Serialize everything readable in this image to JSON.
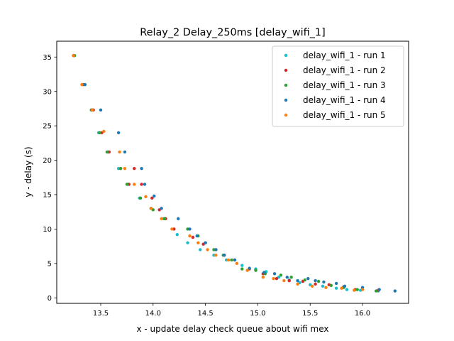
{
  "chart_data": {
    "type": "scatter",
    "title": "Relay_2 Delay_250ms [delay_wifi_1]",
    "xlabel": "x - update delay check queue about wifi mex",
    "ylabel": "y - delay (s)",
    "xlim": [
      13.08,
      16.44
    ],
    "ylim": [
      -0.8,
      37.3
    ],
    "xticks": [
      13.5,
      14.0,
      14.5,
      15.0,
      15.5,
      16.0
    ],
    "xtick_labels": [
      "13.5",
      "14.0",
      "14.5",
      "15.0",
      "15.5",
      "16.0"
    ],
    "yticks": [
      0,
      5,
      10,
      15,
      20,
      25,
      30,
      35
    ],
    "ytick_labels": [
      "0",
      "5",
      "10",
      "15",
      "20",
      "25",
      "30",
      "35"
    ],
    "grid": false,
    "legend_position": "top-right",
    "series": [
      {
        "name": "delay_wifi_1 - run 1",
        "color": "#17becf",
        "points": [
          [
            13.24,
            35.2
          ],
          [
            13.33,
            31.0
          ],
          [
            13.42,
            27.3
          ],
          [
            13.48,
            24.0
          ],
          [
            13.57,
            21.2
          ],
          [
            13.67,
            18.8
          ],
          [
            13.76,
            16.5
          ],
          [
            13.87,
            14.5
          ],
          [
            13.98,
            13.0
          ],
          [
            14.1,
            11.5
          ],
          [
            14.23,
            9.2
          ],
          [
            14.33,
            8.0
          ],
          [
            14.45,
            7.0
          ],
          [
            14.58,
            6.2
          ],
          [
            14.7,
            5.5
          ],
          [
            14.85,
            4.7
          ],
          [
            14.98,
            4.2
          ],
          [
            15.08,
            3.8
          ],
          [
            15.2,
            3.0
          ],
          [
            15.3,
            2.6
          ],
          [
            15.4,
            2.2
          ],
          [
            15.5,
            1.9
          ],
          [
            15.62,
            1.7
          ],
          [
            15.75,
            1.4
          ],
          [
            15.85,
            1.2
          ],
          [
            15.98,
            1.1
          ],
          [
            16.15,
            1.0
          ]
        ]
      },
      {
        "name": "delay_wifi_1 - run 2",
        "color": "#d62728",
        "points": [
          [
            13.24,
            35.2
          ],
          [
            13.33,
            31.0
          ],
          [
            13.43,
            27.3
          ],
          [
            13.51,
            24.0
          ],
          [
            13.58,
            21.2
          ],
          [
            13.69,
            18.8
          ],
          [
            13.82,
            18.8
          ],
          [
            13.77,
            16.5
          ],
          [
            13.89,
            16.5
          ],
          [
            13.99,
            14.5
          ],
          [
            14.06,
            12.8
          ],
          [
            14.12,
            11.5
          ],
          [
            14.2,
            10.0
          ],
          [
            14.38,
            8.8
          ],
          [
            14.48,
            7.8
          ],
          [
            14.6,
            7.0
          ],
          [
            14.68,
            6.2
          ],
          [
            14.78,
            5.5
          ],
          [
            14.92,
            4.2
          ],
          [
            15.05,
            3.5
          ],
          [
            15.18,
            2.8
          ],
          [
            15.3,
            2.5
          ],
          [
            15.43,
            2.4
          ],
          [
            15.55,
            2.0
          ],
          [
            15.68,
            1.9
          ],
          [
            15.82,
            1.6
          ],
          [
            15.93,
            1.2
          ],
          [
            16.15,
            1.1
          ]
        ]
      },
      {
        "name": "delay_wifi_1 - run 3",
        "color": "#2ca02c",
        "points": [
          [
            13.25,
            35.2
          ],
          [
            13.35,
            31.0
          ],
          [
            13.41,
            27.3
          ],
          [
            13.49,
            24.0
          ],
          [
            13.56,
            21.2
          ],
          [
            13.69,
            18.8
          ],
          [
            13.75,
            16.5
          ],
          [
            13.88,
            14.5
          ],
          [
            14.0,
            12.8
          ],
          [
            14.11,
            11.5
          ],
          [
            14.33,
            10.0
          ],
          [
            14.43,
            9.0
          ],
          [
            14.5,
            8.0
          ],
          [
            14.58,
            7.0
          ],
          [
            14.67,
            6.2
          ],
          [
            14.75,
            5.5
          ],
          [
            14.85,
            4.2
          ],
          [
            14.98,
            4.0
          ],
          [
            15.07,
            3.5
          ],
          [
            15.22,
            3.3
          ],
          [
            15.32,
            3.0
          ],
          [
            15.45,
            2.6
          ],
          [
            15.58,
            2.4
          ],
          [
            15.7,
            1.8
          ],
          [
            15.82,
            1.5
          ],
          [
            15.95,
            1.2
          ],
          [
            16.13,
            1.0
          ]
        ]
      },
      {
        "name": "delay_wifi_1 - run 4",
        "color": "#1f77b4",
        "points": [
          [
            13.24,
            35.2
          ],
          [
            13.35,
            31.0
          ],
          [
            13.42,
            27.3
          ],
          [
            13.5,
            27.3
          ],
          [
            13.67,
            24.0
          ],
          [
            13.73,
            21.2
          ],
          [
            13.89,
            18.8
          ],
          [
            13.92,
            16.5
          ],
          [
            14.01,
            14.8
          ],
          [
            14.08,
            13.0
          ],
          [
            14.24,
            11.5
          ],
          [
            14.35,
            10.0
          ],
          [
            14.42,
            9.0
          ],
          [
            14.5,
            8.0
          ],
          [
            14.6,
            7.0
          ],
          [
            14.68,
            6.2
          ],
          [
            14.78,
            5.5
          ],
          [
            14.92,
            4.3
          ],
          [
            15.06,
            3.7
          ],
          [
            15.16,
            3.5
          ],
          [
            15.28,
            3.0
          ],
          [
            15.38,
            2.5
          ],
          [
            15.48,
            2.8
          ],
          [
            15.55,
            2.5
          ],
          [
            15.63,
            2.3
          ],
          [
            15.75,
            2.1
          ],
          [
            15.83,
            1.7
          ],
          [
            16.0,
            1.5
          ],
          [
            16.16,
            1.2
          ],
          [
            16.31,
            1.0
          ]
        ]
      },
      {
        "name": "delay_wifi_1 - run 5",
        "color": "#ff7f0e",
        "points": [
          [
            13.24,
            35.2
          ],
          [
            13.32,
            31.0
          ],
          [
            13.42,
            27.3
          ],
          [
            13.53,
            24.2
          ],
          [
            13.68,
            21.2
          ],
          [
            13.73,
            18.8
          ],
          [
            13.82,
            16.5
          ],
          [
            13.93,
            14.7
          ],
          [
            13.98,
            13.0
          ],
          [
            14.08,
            11.5
          ],
          [
            14.18,
            10.0
          ],
          [
            14.35,
            9.0
          ],
          [
            14.43,
            8.0
          ],
          [
            14.52,
            7.0
          ],
          [
            14.6,
            6.2
          ],
          [
            14.72,
            5.5
          ],
          [
            14.8,
            5.0
          ],
          [
            14.9,
            4.0
          ],
          [
            15.05,
            3.0
          ],
          [
            15.15,
            2.8
          ],
          [
            15.25,
            2.5
          ],
          [
            15.38,
            2.0
          ],
          [
            15.52,
            1.7
          ],
          [
            15.65,
            1.5
          ],
          [
            15.8,
            1.4
          ],
          [
            15.92,
            1.1
          ],
          [
            16.0,
            1.2
          ]
        ]
      }
    ]
  }
}
